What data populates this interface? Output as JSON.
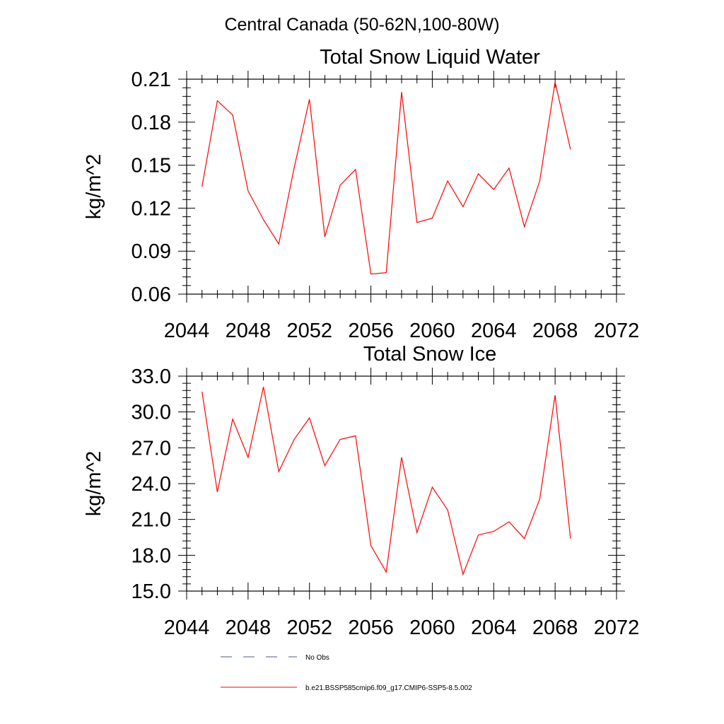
{
  "figure": {
    "title": "Central Canada (50-62N,100-80W)"
  },
  "colors": {
    "model_line": "#ff0000",
    "obs_line": "#4a5a8a",
    "axis": "#000000"
  },
  "legend": [
    {
      "label": "No Obs",
      "style": "dashed",
      "color": "#4a5a8a"
    },
    {
      "label": "b.e21.BSSP585cmip6.f09_g17.CMIP6-SSP5-8.5.002",
      "style": "solid",
      "color": "#ff0000"
    }
  ],
  "chart_data": [
    {
      "type": "line",
      "title": "Total Snow Liquid Water",
      "xlabel": "",
      "ylabel": "kg/m^2",
      "xlim": [
        2044,
        2072
      ],
      "ylim": [
        0.06,
        0.21
      ],
      "xticks": [
        "2044",
        "2048",
        "2052",
        "2056",
        "2060",
        "2064",
        "2068",
        "2072"
      ],
      "yticks": [
        "0.06",
        "0.09",
        "0.12",
        "0.15",
        "0.18",
        "0.21"
      ],
      "x": [
        2045,
        2046,
        2047,
        2048,
        2049,
        2050,
        2051,
        2052,
        2053,
        2054,
        2055,
        2056,
        2057,
        2058,
        2059,
        2060,
        2061,
        2062,
        2063,
        2064,
        2065,
        2066,
        2067,
        2068,
        2069
      ],
      "series": [
        {
          "name": "b.e21.BSSP585cmip6.f09_g17.CMIP6-SSP5-8.5.002",
          "values": [
            0.135,
            0.195,
            0.185,
            0.132,
            0.112,
            0.095,
            0.148,
            0.196,
            0.1,
            0.136,
            0.147,
            0.074,
            0.075,
            0.201,
            0.11,
            0.113,
            0.139,
            0.121,
            0.144,
            0.133,
            0.148,
            0.107,
            0.139,
            0.208,
            0.161
          ]
        }
      ],
      "grid": false
    },
    {
      "type": "line",
      "title": "Total Snow Ice",
      "xlabel": "",
      "ylabel": "kg/m^2",
      "xlim": [
        2044,
        2072
      ],
      "ylim": [
        15.0,
        33.0
      ],
      "xticks": [
        "2044",
        "2048",
        "2052",
        "2056",
        "2060",
        "2064",
        "2068",
        "2072"
      ],
      "yticks": [
        "15.0",
        "18.0",
        "21.0",
        "24.0",
        "27.0",
        "30.0",
        "33.0"
      ],
      "x": [
        2045,
        2046,
        2047,
        2048,
        2049,
        2050,
        2051,
        2052,
        2053,
        2054,
        2055,
        2056,
        2057,
        2058,
        2059,
        2060,
        2061,
        2062,
        2063,
        2064,
        2065,
        2066,
        2067,
        2068,
        2069
      ],
      "series": [
        {
          "name": "b.e21.BSSP585cmip6.f09_g17.CMIP6-SSP5-8.5.002",
          "values": [
            31.7,
            23.3,
            29.4,
            26.2,
            32.1,
            25.0,
            27.7,
            29.5,
            25.5,
            27.7,
            28.0,
            18.8,
            16.6,
            26.2,
            19.9,
            23.7,
            21.8,
            16.4,
            19.7,
            20.0,
            20.8,
            19.4,
            22.7,
            31.4,
            19.4
          ]
        }
      ],
      "grid": false
    }
  ]
}
